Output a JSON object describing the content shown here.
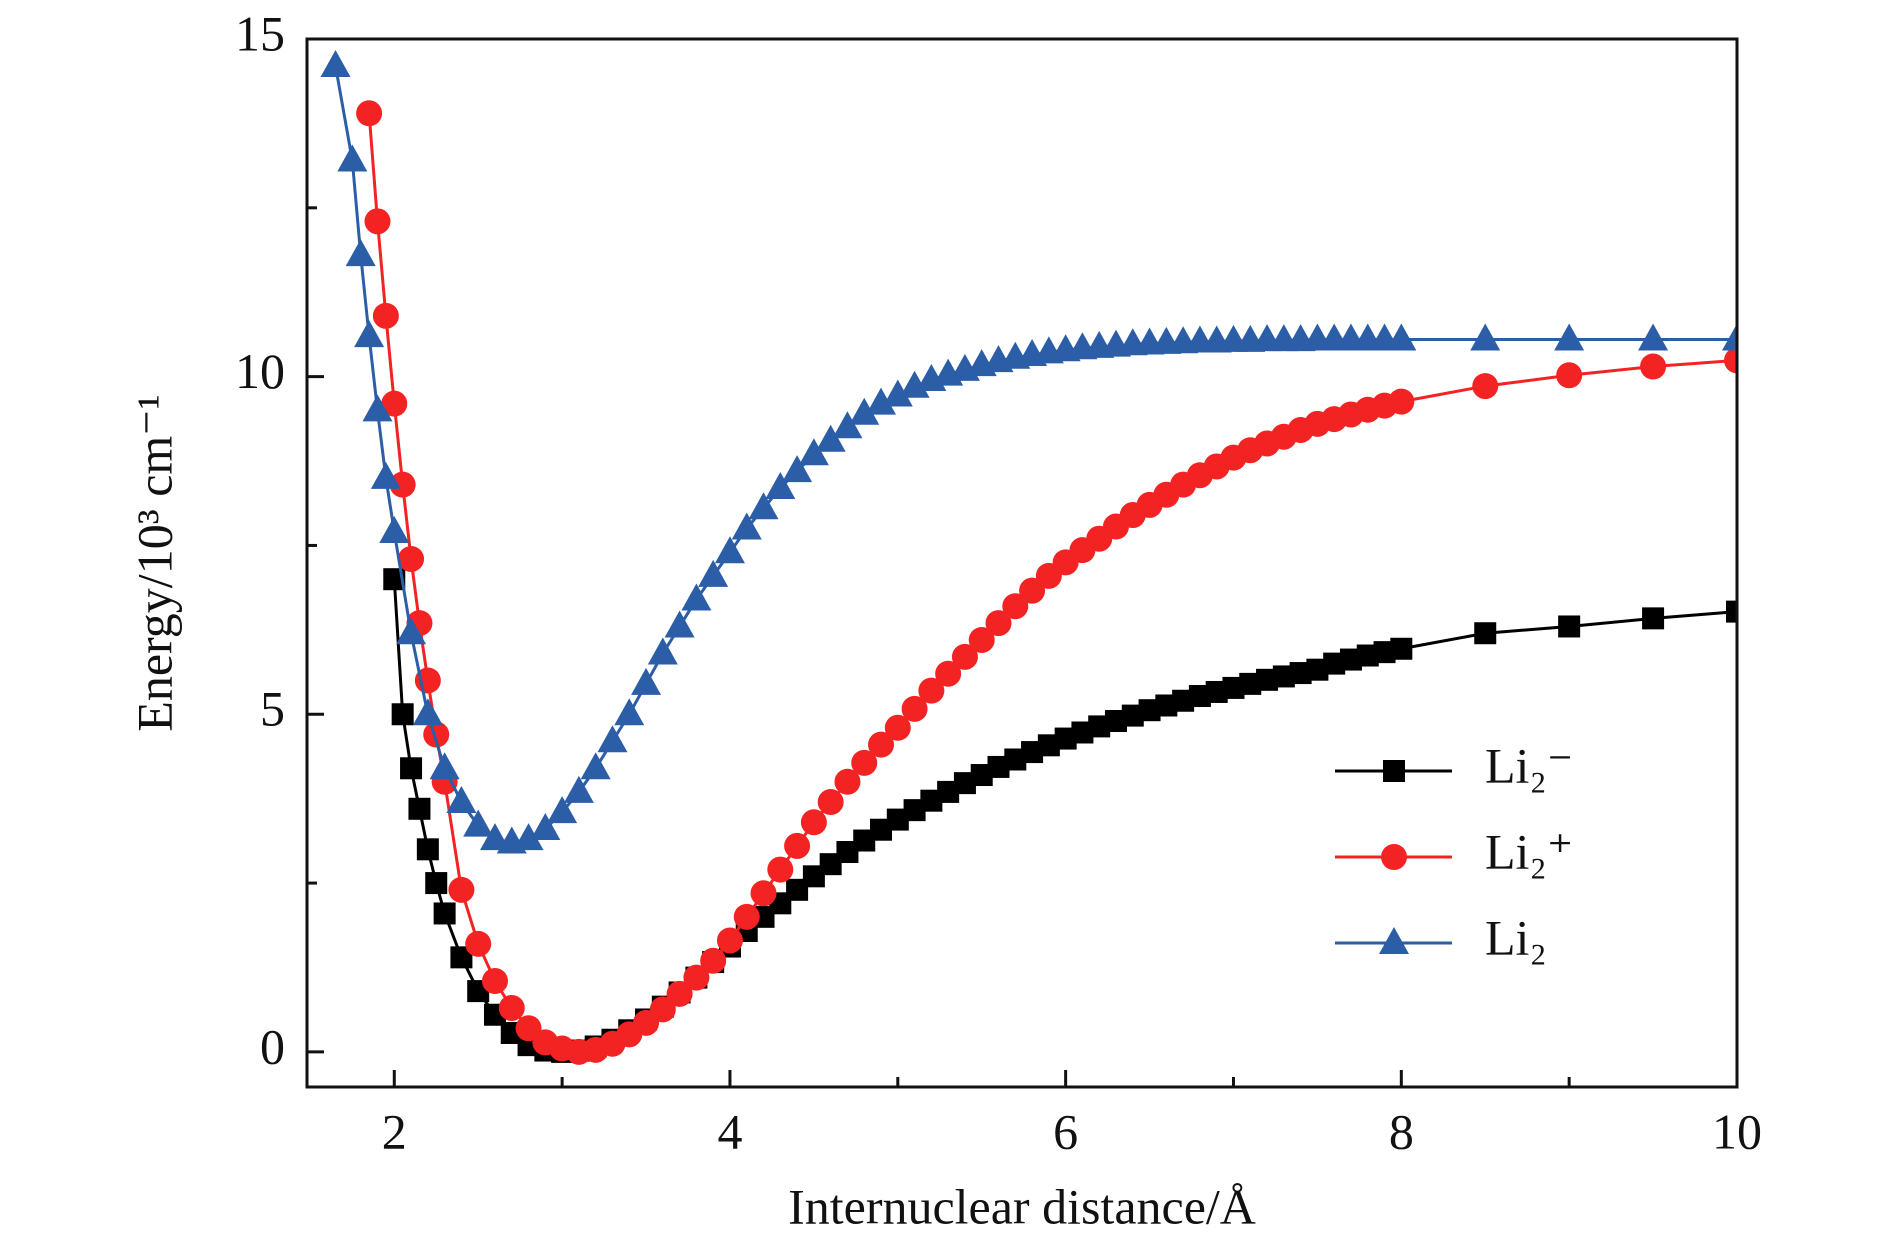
{
  "chart_data": {
    "type": "line",
    "x_label": "Internuclear distance/Å",
    "y_label": "Energy/10³ cm⁻¹",
    "xlim": [
      1.48,
      10
    ],
    "ylim": [
      -0.52,
      15
    ],
    "xticks": [
      2,
      4,
      6,
      8,
      10
    ],
    "yticks": [
      0,
      5,
      10,
      15
    ],
    "xminor": [
      3,
      5,
      7,
      9
    ],
    "yminor": [
      2.5,
      7.5,
      12.5
    ],
    "legend": "lower right",
    "series": [
      {
        "name": "Li₂⁻",
        "color": "#000000",
        "marker": "square",
        "x": [
          2.0,
          2.05,
          2.1,
          2.15,
          2.2,
          2.25,
          2.3,
          2.4,
          2.5,
          2.6,
          2.7,
          2.8,
          2.9,
          3.0,
          3.1,
          3.2,
          3.3,
          3.4,
          3.5,
          3.6,
          3.7,
          3.8,
          3.9,
          4.0,
          4.1,
          4.2,
          4.3,
          4.4,
          4.5,
          4.6,
          4.7,
          4.8,
          4.9,
          5.0,
          5.1,
          5.2,
          5.3,
          5.4,
          5.5,
          5.6,
          5.7,
          5.8,
          5.9,
          6.0,
          6.1,
          6.2,
          6.3,
          6.4,
          6.5,
          6.6,
          6.7,
          6.8,
          6.9,
          7.0,
          7.1,
          7.2,
          7.3,
          7.4,
          7.5,
          7.6,
          7.7,
          7.8,
          7.9,
          8.0,
          8.5,
          9.0,
          9.5,
          10.0
        ],
        "values": [
          7.0,
          5.0,
          4.2,
          3.6,
          3.0,
          2.5,
          2.05,
          1.4,
          0.9,
          0.55,
          0.28,
          0.1,
          0.02,
          0.0,
          0.02,
          0.08,
          0.18,
          0.32,
          0.48,
          0.67,
          0.88,
          1.1,
          1.33,
          1.56,
          1.79,
          2.0,
          2.2,
          2.4,
          2.6,
          2.78,
          2.96,
          3.13,
          3.29,
          3.44,
          3.58,
          3.72,
          3.85,
          3.98,
          4.1,
          4.22,
          4.33,
          4.44,
          4.54,
          4.64,
          4.73,
          4.82,
          4.9,
          4.98,
          5.06,
          5.13,
          5.2,
          5.27,
          5.33,
          5.39,
          5.45,
          5.51,
          5.56,
          5.61,
          5.66,
          5.75,
          5.81,
          5.87,
          5.92,
          5.97,
          6.2,
          6.3,
          6.42,
          6.52
        ]
      },
      {
        "name": "Li₂⁺",
        "color": "#f42323",
        "marker": "circle",
        "x": [
          1.85,
          1.9,
          1.95,
          2.0,
          2.05,
          2.1,
          2.15,
          2.2,
          2.25,
          2.3,
          2.4,
          2.5,
          2.6,
          2.7,
          2.8,
          2.9,
          3.0,
          3.1,
          3.2,
          3.3,
          3.4,
          3.5,
          3.6,
          3.7,
          3.8,
          3.9,
          4.0,
          4.1,
          4.2,
          4.3,
          4.4,
          4.5,
          4.6,
          4.7,
          4.8,
          4.9,
          5.0,
          5.1,
          5.2,
          5.3,
          5.4,
          5.5,
          5.6,
          5.7,
          5.8,
          5.9,
          6.0,
          6.1,
          6.2,
          6.3,
          6.4,
          6.5,
          6.6,
          6.7,
          6.8,
          6.9,
          7.0,
          7.1,
          7.2,
          7.3,
          7.4,
          7.5,
          7.6,
          7.7,
          7.8,
          7.9,
          8.0,
          8.5,
          9.0,
          9.5,
          10.0
        ],
        "values": [
          13.9,
          12.3,
          10.9,
          9.6,
          8.4,
          7.3,
          6.35,
          5.5,
          4.7,
          4.0,
          2.4,
          1.6,
          1.05,
          0.65,
          0.35,
          0.14,
          0.05,
          0.0,
          0.03,
          0.12,
          0.26,
          0.43,
          0.63,
          0.86,
          1.1,
          1.35,
          1.65,
          2.0,
          2.35,
          2.7,
          3.05,
          3.4,
          3.7,
          4.0,
          4.28,
          4.55,
          4.8,
          5.08,
          5.35,
          5.6,
          5.85,
          6.1,
          6.35,
          6.6,
          6.83,
          7.05,
          7.25,
          7.43,
          7.6,
          7.78,
          7.95,
          8.1,
          8.25,
          8.4,
          8.54,
          8.67,
          8.8,
          8.91,
          9.01,
          9.11,
          9.21,
          9.3,
          9.37,
          9.44,
          9.51,
          9.57,
          9.63,
          9.86,
          10.02,
          10.15,
          10.24
        ]
      },
      {
        "name": "Li₂",
        "color": "#2c5ea8",
        "marker": "triangle",
        "x": [
          1.65,
          1.75,
          1.8,
          1.85,
          1.9,
          1.95,
          2.0,
          2.1,
          2.2,
          2.3,
          2.4,
          2.5,
          2.6,
          2.7,
          2.8,
          2.9,
          3.0,
          3.1,
          3.2,
          3.3,
          3.4,
          3.5,
          3.6,
          3.7,
          3.8,
          3.9,
          4.0,
          4.1,
          4.2,
          4.3,
          4.4,
          4.5,
          4.6,
          4.7,
          4.8,
          4.9,
          5.0,
          5.1,
          5.2,
          5.3,
          5.4,
          5.5,
          5.6,
          5.7,
          5.8,
          5.9,
          6.0,
          6.1,
          6.2,
          6.3,
          6.4,
          6.5,
          6.6,
          6.7,
          6.8,
          6.9,
          7.0,
          7.1,
          7.2,
          7.3,
          7.4,
          7.5,
          7.6,
          7.7,
          7.8,
          7.9,
          8.0,
          8.5,
          9.0,
          9.5,
          10.0
        ],
        "values": [
          14.6,
          13.2,
          11.8,
          10.6,
          9.5,
          8.5,
          7.7,
          6.2,
          5.0,
          4.2,
          3.7,
          3.35,
          3.15,
          3.1,
          3.15,
          3.3,
          3.55,
          3.85,
          4.2,
          4.6,
          5.0,
          5.45,
          5.9,
          6.3,
          6.7,
          7.05,
          7.4,
          7.75,
          8.05,
          8.35,
          8.6,
          8.85,
          9.05,
          9.25,
          9.45,
          9.6,
          9.72,
          9.85,
          9.95,
          10.03,
          10.1,
          10.17,
          10.23,
          10.28,
          10.32,
          10.36,
          10.39,
          10.42,
          10.44,
          10.46,
          10.48,
          10.49,
          10.5,
          10.51,
          10.52,
          10.52,
          10.53,
          10.53,
          10.54,
          10.54,
          10.54,
          10.55,
          10.55,
          10.55,
          10.55,
          10.55,
          10.55,
          10.55,
          10.55,
          10.55,
          10.55
        ]
      }
    ]
  }
}
